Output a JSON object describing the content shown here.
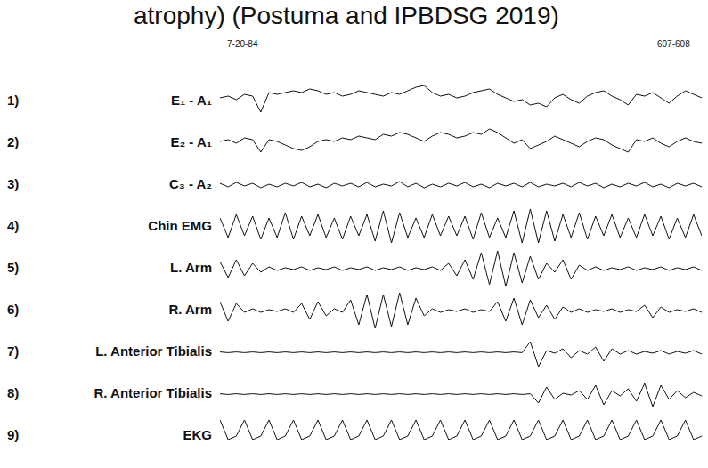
{
  "header": {
    "caption": "atrophy) (Postuma and IPBDSG   2019)",
    "date": "7-20-84",
    "page": "607-608"
  },
  "chart_data": [
    {
      "type": "line",
      "title": "E₁ - A₁",
      "annotations": [
        "1)"
      ],
      "tick_labels": false,
      "color": "#111111",
      "xlim": [
        0,
        59
      ],
      "ylim": [
        -1,
        1
      ],
      "x": [
        0,
        1,
        2,
        3,
        4,
        5,
        6,
        7,
        8,
        9,
        10,
        11,
        12,
        13,
        14,
        15,
        16,
        17,
        18,
        19,
        20,
        21,
        22,
        23,
        24,
        25,
        26,
        27,
        28,
        29,
        30,
        31,
        32,
        33,
        34,
        35,
        36,
        37,
        38,
        39,
        40,
        41,
        42,
        43,
        44,
        45,
        46,
        47,
        48,
        49,
        50,
        51,
        52,
        53,
        54,
        55,
        56,
        57,
        58,
        59
      ],
      "values": [
        0.2,
        0.3,
        0.1,
        0.4,
        0.3,
        -0.6,
        0.5,
        0.4,
        0.5,
        0.6,
        0.5,
        0.7,
        0.6,
        0.4,
        0.5,
        0.3,
        0.4,
        0.6,
        0.5,
        0.4,
        0.3,
        0.5,
        0.4,
        0.6,
        0.8,
        0.9,
        0.5,
        0.3,
        0.4,
        0.2,
        0.3,
        0.5,
        0.6,
        0.7,
        0.4,
        0.2,
        0.0,
        0.1,
        -0.2,
        -0.1,
        -0.3,
        0.2,
        0.4,
        0.1,
        -0.1,
        0.3,
        0.5,
        0.6,
        0.3,
        0.1,
        -0.2,
        0.4,
        0.3,
        0.5,
        0.2,
        -0.1,
        0.3,
        0.6,
        0.4,
        0.2
      ]
    },
    {
      "type": "line",
      "title": "E₂ - A₁",
      "annotations": [
        "2)"
      ],
      "tick_labels": false,
      "color": "#111111",
      "xlim": [
        0,
        59
      ],
      "ylim": [
        -1,
        1
      ],
      "x": [
        0,
        1,
        2,
        3,
        4,
        5,
        6,
        7,
        8,
        9,
        10,
        11,
        12,
        13,
        14,
        15,
        16,
        17,
        18,
        19,
        20,
        21,
        22,
        23,
        24,
        25,
        26,
        27,
        28,
        29,
        30,
        31,
        32,
        33,
        34,
        35,
        36,
        37,
        38,
        39,
        40,
        41,
        42,
        43,
        44,
        45,
        46,
        47,
        48,
        49,
        50,
        51,
        52,
        53,
        54,
        55,
        56,
        57,
        58,
        59
      ],
      "values": [
        0.1,
        0.2,
        0.0,
        0.3,
        0.2,
        -0.5,
        0.2,
        0.1,
        -0.1,
        -0.3,
        -0.4,
        -0.2,
        0.1,
        0.2,
        0.1,
        0.3,
        0.2,
        0.4,
        0.3,
        0.2,
        0.5,
        0.4,
        0.6,
        0.5,
        0.3,
        0.1,
        0.4,
        0.6,
        0.5,
        0.3,
        0.4,
        0.6,
        0.5,
        0.8,
        0.6,
        0.3,
        0.0,
        0.2,
        -0.3,
        -0.1,
        0.1,
        0.4,
        0.2,
        0.0,
        -0.2,
        0.1,
        0.3,
        0.2,
        -0.1,
        -0.3,
        -0.5,
        0.2,
        0.1,
        0.3,
        0.0,
        -0.2,
        0.1,
        0.3,
        0.1,
        0.0
      ]
    },
    {
      "type": "line",
      "title": "C₃ - A₂",
      "annotations": [
        "3)"
      ],
      "tick_labels": false,
      "color": "#111111",
      "xlim": [
        0,
        59
      ],
      "ylim": [
        -1,
        1
      ],
      "x": [
        0,
        1,
        2,
        3,
        4,
        5,
        6,
        7,
        8,
        9,
        10,
        11,
        12,
        13,
        14,
        15,
        16,
        17,
        18,
        19,
        20,
        21,
        22,
        23,
        24,
        25,
        26,
        27,
        28,
        29,
        30,
        31,
        32,
        33,
        34,
        35,
        36,
        37,
        38,
        39,
        40,
        41,
        42,
        43,
        44,
        45,
        46,
        47,
        48,
        49,
        50,
        51,
        52,
        53,
        54,
        55,
        56,
        57,
        58,
        59
      ],
      "values": [
        0.1,
        -0.1,
        0.15,
        -0.05,
        0.1,
        -0.15,
        0.05,
        -0.1,
        0.1,
        -0.05,
        0.15,
        -0.1,
        0.05,
        -0.15,
        0.1,
        -0.05,
        0.1,
        -0.1,
        0.15,
        -0.1,
        0.05,
        -0.05,
        0.2,
        -0.1,
        0.1,
        -0.15,
        0.05,
        -0.1,
        0.1,
        -0.05,
        0.15,
        -0.1,
        0.05,
        -0.15,
        0.1,
        -0.05,
        0.1,
        -0.1,
        0.15,
        -0.1,
        0.05,
        -0.05,
        0.1,
        -0.1,
        0.15,
        -0.05,
        0.1,
        -0.15,
        0.05,
        -0.1,
        0.1,
        -0.05,
        0.15,
        -0.1,
        0.05,
        -0.15,
        0.1,
        -0.05,
        0.1,
        -0.1
      ]
    },
    {
      "type": "line",
      "title": "Chin EMG",
      "annotations": [
        "4)"
      ],
      "tick_labels": false,
      "color": "#111111",
      "xlim": [
        0,
        59
      ],
      "ylim": [
        -1,
        1
      ],
      "x": [
        0,
        1,
        2,
        3,
        4,
        5,
        6,
        7,
        8,
        9,
        10,
        11,
        12,
        13,
        14,
        15,
        16,
        17,
        18,
        19,
        20,
        21,
        22,
        23,
        24,
        25,
        26,
        27,
        28,
        29,
        30,
        31,
        32,
        33,
        34,
        35,
        36,
        37,
        38,
        39,
        40,
        41,
        42,
        43,
        44,
        45,
        46,
        47,
        48,
        49,
        50,
        51,
        52,
        53,
        54,
        55,
        56,
        57,
        58,
        59
      ],
      "values": [
        0.5,
        -0.6,
        0.7,
        -0.5,
        0.6,
        -0.7,
        0.5,
        -0.6,
        0.8,
        -0.7,
        0.6,
        -0.5,
        0.7,
        -0.6,
        0.5,
        -0.7,
        0.6,
        -0.5,
        0.7,
        -0.8,
        0.9,
        -0.9,
        0.8,
        -0.6,
        0.5,
        -0.6,
        0.7,
        -0.5,
        0.6,
        -0.5,
        0.6,
        -0.7,
        0.8,
        -0.6,
        0.5,
        -0.6,
        0.9,
        -0.9,
        1.0,
        -0.9,
        0.9,
        -0.8,
        0.7,
        -0.6,
        0.8,
        -0.7,
        0.6,
        -0.5,
        0.7,
        -0.6,
        0.5,
        -0.6,
        0.7,
        -0.5,
        0.6,
        -0.7,
        0.5,
        -0.6,
        0.7,
        -0.5
      ]
    },
    {
      "type": "line",
      "title": "L. Arm",
      "annotations": [
        "5)"
      ],
      "tick_labels": false,
      "color": "#111111",
      "xlim": [
        0,
        59
      ],
      "ylim": [
        -1,
        1
      ],
      "x": [
        0,
        1,
        2,
        3,
        4,
        5,
        6,
        7,
        8,
        9,
        10,
        11,
        12,
        13,
        14,
        15,
        16,
        17,
        18,
        19,
        20,
        21,
        22,
        23,
        24,
        25,
        26,
        27,
        28,
        29,
        30,
        31,
        32,
        33,
        34,
        35,
        36,
        37,
        38,
        39,
        40,
        41,
        42,
        43,
        44,
        45,
        46,
        47,
        48,
        49,
        50,
        51,
        52,
        53,
        54,
        55,
        56,
        57,
        58,
        59
      ],
      "values": [
        0.4,
        -0.5,
        0.5,
        -0.4,
        0.3,
        -0.2,
        0.1,
        -0.1,
        0.05,
        -0.05,
        0.1,
        -0.1,
        0.05,
        -0.05,
        0.1,
        -0.1,
        0.05,
        -0.05,
        0.1,
        -0.1,
        0.05,
        -0.05,
        0.1,
        -0.1,
        0.05,
        -0.05,
        0.1,
        -0.1,
        0.3,
        -0.4,
        0.5,
        -0.6,
        0.9,
        -0.9,
        1.0,
        -1.0,
        0.9,
        -0.8,
        0.7,
        -0.6,
        0.3,
        -0.2,
        0.5,
        -0.6,
        0.2,
        -0.1,
        0.1,
        -0.1,
        0.05,
        -0.05,
        0.1,
        -0.1,
        0.05,
        -0.05,
        0.1,
        -0.1,
        0.05,
        -0.05,
        0.1,
        -0.1
      ]
    },
    {
      "type": "line",
      "title": "R. Arm",
      "annotations": [
        "6)"
      ],
      "tick_labels": false,
      "color": "#111111",
      "xlim": [
        0,
        59
      ],
      "ylim": [
        -1,
        1
      ],
      "x": [
        0,
        1,
        2,
        3,
        4,
        5,
        6,
        7,
        8,
        9,
        10,
        11,
        12,
        13,
        14,
        15,
        16,
        17,
        18,
        19,
        20,
        21,
        22,
        23,
        24,
        25,
        26,
        27,
        28,
        29,
        30,
        31,
        32,
        33,
        34,
        35,
        36,
        37,
        38,
        39,
        40,
        41,
        42,
        43,
        44,
        45,
        46,
        47,
        48,
        49,
        50,
        51,
        52,
        53,
        54,
        55,
        56,
        57,
        58,
        59
      ],
      "values": [
        0.5,
        -0.6,
        0.4,
        -0.1,
        0.1,
        -0.1,
        0.05,
        -0.05,
        0.1,
        -0.1,
        0.4,
        -0.5,
        0.5,
        -0.3,
        0.1,
        -0.1,
        0.6,
        -0.8,
        0.9,
        -1.0,
        0.9,
        -0.9,
        1.0,
        -0.8,
        0.7,
        -0.3,
        0.1,
        -0.1,
        0.05,
        -0.05,
        0.1,
        -0.1,
        0.05,
        -0.05,
        0.5,
        -0.6,
        0.7,
        -0.8,
        0.6,
        -0.4,
        0.3,
        -0.5,
        0.2,
        -0.1,
        0.1,
        -0.1,
        0.05,
        -0.05,
        0.1,
        -0.1,
        0.05,
        -0.05,
        0.3,
        -0.4,
        0.2,
        -0.1,
        0.05,
        -0.05,
        0.1,
        -0.1
      ]
    },
    {
      "type": "line",
      "title": "L. Anterior Tibialis",
      "annotations": [
        "7)"
      ],
      "tick_labels": false,
      "color": "#111111",
      "xlim": [
        0,
        59
      ],
      "ylim": [
        -1,
        1
      ],
      "x": [
        0,
        1,
        2,
        3,
        4,
        5,
        6,
        7,
        8,
        9,
        10,
        11,
        12,
        13,
        14,
        15,
        16,
        17,
        18,
        19,
        20,
        21,
        22,
        23,
        24,
        25,
        26,
        27,
        28,
        29,
        30,
        31,
        32,
        33,
        34,
        35,
        36,
        37,
        38,
        39,
        40,
        41,
        42,
        43,
        44,
        45,
        46,
        47,
        48,
        49,
        50,
        51,
        52,
        53,
        54,
        55,
        56,
        57,
        58,
        59
      ],
      "values": [
        0.02,
        -0.02,
        0.02,
        -0.02,
        0.02,
        -0.02,
        0.02,
        -0.02,
        0.02,
        -0.02,
        0.02,
        -0.02,
        0.02,
        -0.02,
        0.02,
        -0.02,
        0.02,
        -0.02,
        0.02,
        -0.02,
        0.02,
        -0.02,
        0.02,
        -0.02,
        0.02,
        -0.02,
        0.02,
        -0.02,
        0.02,
        -0.02,
        0.02,
        -0.02,
        0.02,
        -0.02,
        0.02,
        -0.02,
        0.02,
        -0.02,
        0.6,
        -0.8,
        0.1,
        -0.05,
        0.2,
        -0.3,
        0.1,
        -0.1,
        0.3,
        -0.5,
        0.2,
        -0.1,
        0.1,
        -0.1,
        0.05,
        -0.05,
        0.1,
        -0.1,
        0.05,
        -0.05,
        0.1,
        -0.1
      ]
    },
    {
      "type": "line",
      "title": "R. Anterior Tibialis",
      "annotations": [
        "8)"
      ],
      "tick_labels": false,
      "color": "#111111",
      "xlim": [
        0,
        59
      ],
      "ylim": [
        -1,
        1
      ],
      "x": [
        0,
        1,
        2,
        3,
        4,
        5,
        6,
        7,
        8,
        9,
        10,
        11,
        12,
        13,
        14,
        15,
        16,
        17,
        18,
        19,
        20,
        21,
        22,
        23,
        24,
        25,
        26,
        27,
        28,
        29,
        30,
        31,
        32,
        33,
        34,
        35,
        36,
        37,
        38,
        39,
        40,
        41,
        42,
        43,
        44,
        45,
        46,
        47,
        48,
        49,
        50,
        51,
        52,
        53,
        54,
        55,
        56,
        57,
        58,
        59
      ],
      "values": [
        0.02,
        -0.02,
        0.02,
        -0.02,
        0.02,
        -0.02,
        0.02,
        -0.02,
        0.02,
        -0.02,
        0.02,
        -0.02,
        0.02,
        -0.02,
        0.02,
        -0.02,
        0.02,
        -0.02,
        0.02,
        -0.02,
        0.02,
        -0.02,
        0.02,
        -0.02,
        0.02,
        -0.02,
        0.02,
        -0.02,
        0.02,
        -0.02,
        0.02,
        -0.02,
        0.02,
        -0.02,
        0.02,
        -0.02,
        0.02,
        -0.02,
        0.02,
        -0.5,
        0.4,
        -0.3,
        0.05,
        -0.05,
        0.2,
        -0.3,
        0.5,
        -0.6,
        0.2,
        -0.1,
        0.3,
        -0.4,
        0.6,
        -0.7,
        0.5,
        -0.3,
        0.2,
        -0.2,
        0.1,
        -0.1
      ]
    },
    {
      "type": "line",
      "title": "EKG",
      "annotations": [
        "9)"
      ],
      "tick_labels": false,
      "color": "#111111",
      "xlim": [
        0,
        59
      ],
      "ylim": [
        -1,
        1
      ],
      "x": [
        0,
        1,
        2,
        3,
        4,
        5,
        6,
        7,
        8,
        9,
        10,
        11,
        12,
        13,
        14,
        15,
        16,
        17,
        18,
        19,
        20,
        21,
        22,
        23,
        24,
        25,
        26,
        27,
        28,
        29,
        30,
        31,
        32,
        33,
        34,
        35,
        36,
        37,
        38,
        39,
        40,
        41,
        42,
        43,
        44,
        45,
        46,
        47,
        48,
        49,
        50,
        51,
        52,
        53,
        54,
        55,
        56,
        57,
        58,
        59
      ],
      "values": [
        0.9,
        -0.2,
        0.0,
        0.9,
        -0.2,
        0.0,
        0.9,
        -0.2,
        0.0,
        0.9,
        -0.2,
        0.0,
        0.9,
        -0.2,
        0.0,
        0.9,
        -0.2,
        0.0,
        0.9,
        -0.2,
        0.0,
        0.9,
        -0.2,
        0.0,
        0.9,
        -0.2,
        0.0,
        0.9,
        -0.2,
        0.0,
        0.9,
        -0.2,
        0.0,
        0.9,
        -0.2,
        0.0,
        0.9,
        -0.2,
        0.0,
        0.9,
        -0.2,
        0.0,
        0.9,
        -0.2,
        0.0,
        0.9,
        -0.2,
        0.0,
        0.9,
        -0.2,
        0.0,
        0.9,
        -0.2,
        0.0,
        0.9,
        -0.2,
        0.0,
        0.9,
        -0.2,
        0.0
      ]
    }
  ]
}
